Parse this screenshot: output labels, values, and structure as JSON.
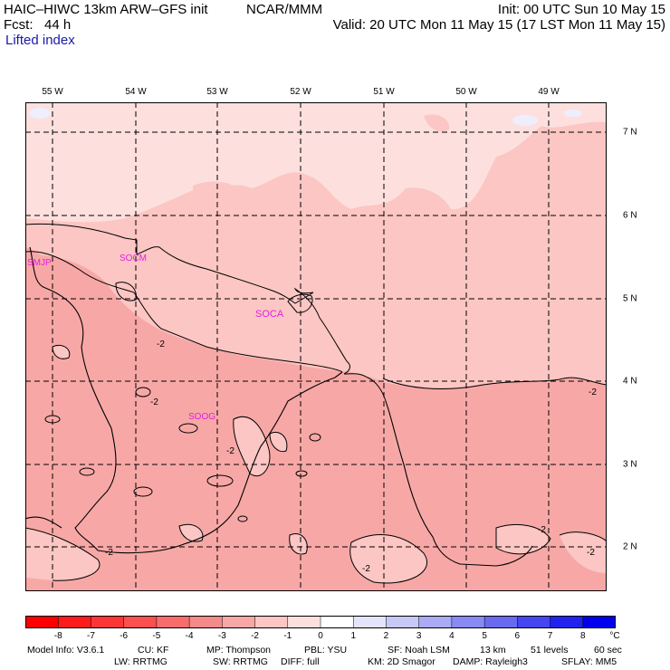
{
  "header": {
    "model": "HAIC–HIWC 13km ARW–GFS init",
    "org": "NCAR/MMM",
    "init": "Init: 00 UTC Sun 10 May 15",
    "fcst": "Fcst:   44 h",
    "valid": "Valid: 20 UTC Mon 11 May 15 (17 LST Mon 11 May 15)",
    "field": "Lifted index"
  },
  "map": {
    "lon_labels": [
      "55 W",
      "54 W",
      "53 W",
      "52 W",
      "51 W",
      "50 W",
      "49 W"
    ],
    "lat_labels": [
      "7 N",
      "6 N",
      "5 N",
      "4 N",
      "3 N",
      "2 N"
    ],
    "stations": [
      "SMJP",
      "SOCM",
      "SOCA",
      "SOOG"
    ],
    "contour_labels": [
      "-2",
      "-2",
      "-2",
      "-2",
      "-2",
      "-2",
      "-2",
      "-2"
    ],
    "colors": {
      "c_m1": "#fde0de",
      "c_m2": "#fbc6c3",
      "c_m3": "#f7a8a6",
      "c_pos": "#eeeefd",
      "station": "#e41ee4"
    }
  },
  "colorbar": {
    "labels": [
      "-8",
      "-7",
      "-6",
      "-5",
      "-4",
      "-3",
      "-2",
      "-1",
      "0",
      "1",
      "2",
      "3",
      "4",
      "5",
      "6",
      "7",
      "8"
    ],
    "unit": "°C",
    "colors": [
      "#fd0000",
      "#fd1a1a",
      "#fc3636",
      "#fa5050",
      "#f76d6d",
      "#f58a8a",
      "#f7a8a6",
      "#fbc6c3",
      "#fde0de",
      "#ffffff",
      "#e4e4fb",
      "#c8c8f7",
      "#aaaaf6",
      "#8a8af4",
      "#6a6af1",
      "#4646f0",
      "#2222ef",
      "#0000ee"
    ]
  },
  "footer": {
    "line1": [
      "Model Info: V3.6.1",
      "CU: KF",
      "MP: Thompson",
      "PBL: YSU",
      "SF: Noah LSM",
      "13 km",
      "51 levels",
      "60 sec"
    ],
    "line2": [
      "LW: RRTMG",
      "SW: RRTMG",
      "DIFF: full",
      "KM: 2D Smagor",
      "DAMP: Rayleigh3",
      "SFLAY: MM5"
    ]
  }
}
